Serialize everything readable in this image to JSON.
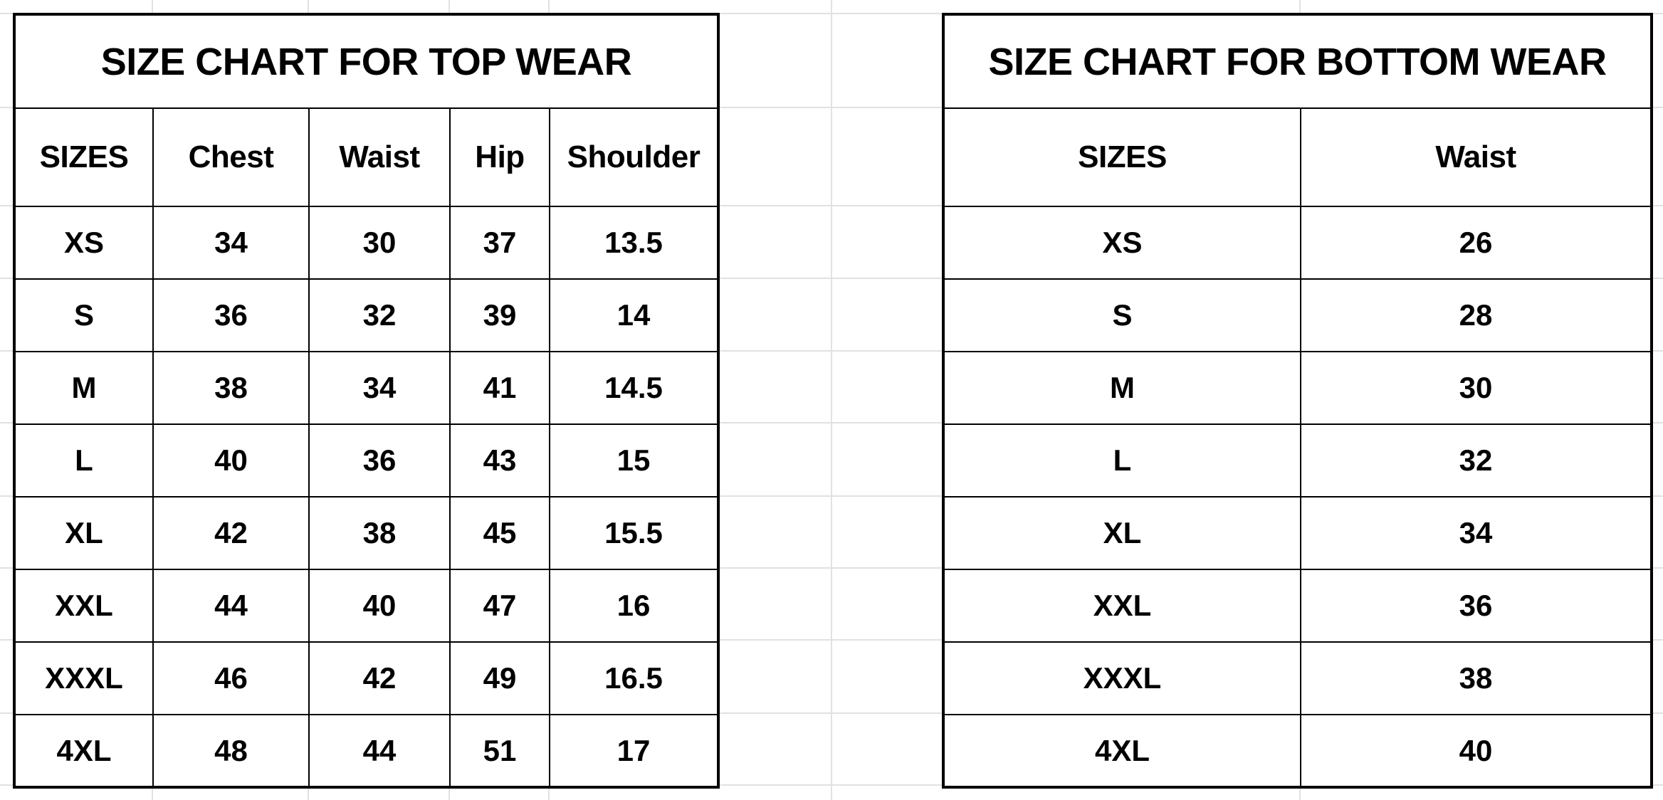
{
  "top_wear": {
    "title": "SIZE CHART FOR TOP WEAR",
    "headers": [
      "SIZES",
      "Chest",
      "Waist",
      "Hip",
      "Shoulder"
    ],
    "rows": [
      [
        "XS",
        "34",
        "30",
        "37",
        "13.5"
      ],
      [
        "S",
        "36",
        "32",
        "39",
        "14"
      ],
      [
        "M",
        "38",
        "34",
        "41",
        "14.5"
      ],
      [
        "L",
        "40",
        "36",
        "43",
        "15"
      ],
      [
        "XL",
        "42",
        "38",
        "45",
        "15.5"
      ],
      [
        "XXL",
        "44",
        "40",
        "47",
        "16"
      ],
      [
        "XXXL",
        "46",
        "42",
        "49",
        "16.5"
      ],
      [
        "4XL",
        "48",
        "44",
        "51",
        "17"
      ]
    ]
  },
  "bottom_wear": {
    "title": "SIZE CHART FOR BOTTOM WEAR",
    "headers": [
      "SIZES",
      "Waist"
    ],
    "rows": [
      [
        "XS",
        "26"
      ],
      [
        "S",
        "28"
      ],
      [
        "M",
        "30"
      ],
      [
        "L",
        "32"
      ],
      [
        "XL",
        "34"
      ],
      [
        "XXL",
        "36"
      ],
      [
        "XXXL",
        "38"
      ],
      [
        "4XL",
        "40"
      ]
    ]
  }
}
